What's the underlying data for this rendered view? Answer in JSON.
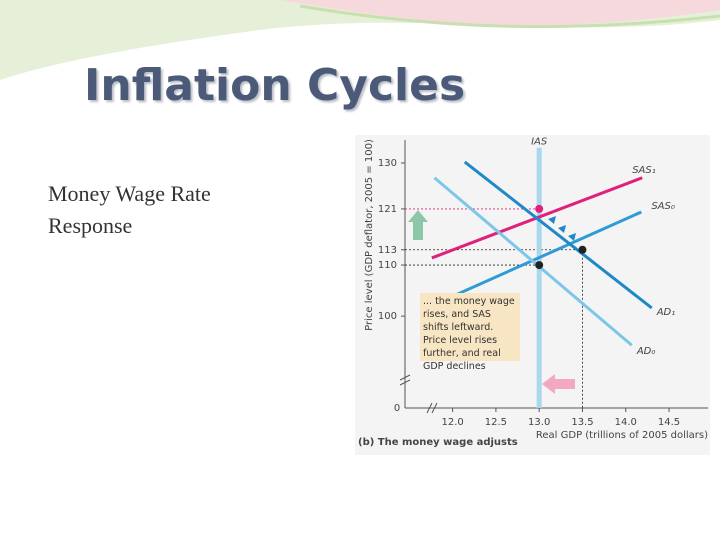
{
  "title": "Inflation Cycles",
  "body_text": "Money Wage Rate Response",
  "chart_data": {
    "type": "line",
    "xlabel": "Real GDP (trillions of 2005 dollars)",
    "ylabel": "Price level (GDP deflator, 2005 = 100)",
    "caption": "(b) The money wage adjusts",
    "annotation": "... the money wage rises, and SAS shifts leftward. Price level rises further, and real GDP declines",
    "origin_label": "0",
    "xlim": [
      11.45,
      14.95
    ],
    "ylim": [
      82,
      134.5
    ],
    "xticks": [
      {
        "value": 12,
        "label": "12.0"
      },
      12.5,
      {
        "value": 13,
        "label": "13.0"
      },
      13.5,
      {
        "value": 14,
        "label": "14.0"
      },
      14.5
    ],
    "yticks": [
      100,
      110,
      113,
      121,
      130
    ],
    "series": [
      {
        "name": "IAS",
        "color": "#a9d8ee",
        "x": [
          13,
          13
        ],
        "values": [
          133,
          82
        ]
      },
      {
        "name": "SAS₁",
        "color": "#e0207a",
        "x": [
          11.76,
          14.19
        ],
        "values": [
          111.4,
          127.1
        ]
      },
      {
        "name": "SAS₀",
        "color": "#2f9bd6",
        "x": [
          11.87,
          14.18
        ],
        "values": [
          102.9,
          120.4
        ]
      },
      {
        "name": "AD₁",
        "color": "#1f88c8",
        "x": [
          12.14,
          14.3
        ],
        "values": [
          130.2,
          101.6
        ]
      },
      {
        "name": "AD₀",
        "color": "#7cc6ea",
        "x": [
          11.79,
          14.07
        ],
        "values": [
          127.1,
          94.3
        ]
      }
    ],
    "points": [
      {
        "x": 13,
        "y": 121,
        "color": "#e0207a"
      },
      {
        "x": 13,
        "y": 110,
        "color": "#222222"
      },
      {
        "x": 13.5,
        "y": 113,
        "color": "#222222"
      }
    ]
  }
}
